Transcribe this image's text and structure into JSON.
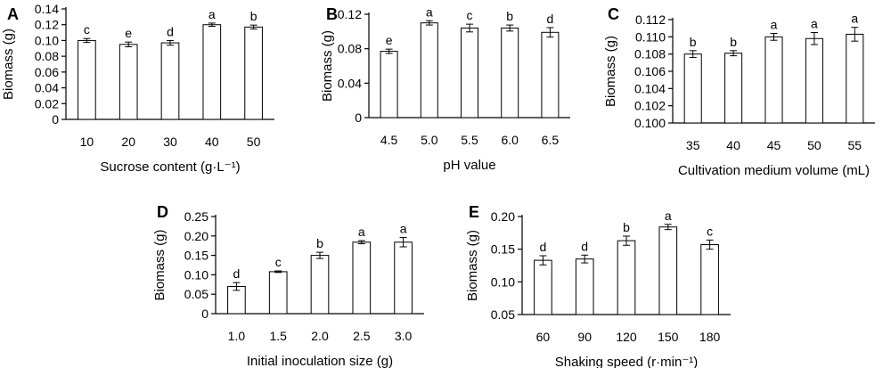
{
  "chart_data": [
    {
      "panel": "A",
      "type": "bar",
      "categories": [
        "10",
        "20",
        "30",
        "40",
        "50"
      ],
      "values": [
        0.1,
        0.095,
        0.097,
        0.12,
        0.117
      ],
      "errors": [
        0.0025,
        0.003,
        0.003,
        0.002,
        0.0025
      ],
      "significance": [
        "c",
        "e",
        "d",
        "a",
        "b"
      ],
      "xlabel": "Sucrose content (g·L⁻¹)",
      "ylabel": "Biomass (g)",
      "ylim": [
        0,
        0.14
      ],
      "yticks": [
        "0",
        "0.02",
        "0.04",
        "0.06",
        "0.08",
        "0.10",
        "0.12",
        "0.14"
      ],
      "grid": false
    },
    {
      "panel": "B",
      "type": "bar",
      "categories": [
        "4.5",
        "5.0",
        "5.5",
        "6.0",
        "6.5"
      ],
      "values": [
        0.077,
        0.11,
        0.104,
        0.104,
        0.099
      ],
      "errors": [
        0.0025,
        0.0025,
        0.0045,
        0.0035,
        0.0055
      ],
      "significance": [
        "e",
        "a",
        "c",
        "b",
        "d"
      ],
      "xlabel": "pH value",
      "ylabel": "Biomass (g)",
      "ylim": [
        0,
        0.12
      ],
      "yticks": [
        "0",
        "0.04",
        "0.08",
        "0.12"
      ],
      "grid": false
    },
    {
      "panel": "C",
      "type": "bar",
      "categories": [
        "35",
        "40",
        "45",
        "50",
        "55"
      ],
      "values": [
        0.108,
        0.1081,
        0.11,
        0.1098,
        0.1103
      ],
      "errors": [
        0.0004,
        0.0003,
        0.0004,
        0.0007,
        0.0008
      ],
      "significance": [
        "b",
        "b",
        "a",
        "a",
        "a"
      ],
      "xlabel": "Cultivation medium volume (mL)",
      "ylabel": "Biomass (g)",
      "ylim": [
        0.1,
        0.112
      ],
      "yticks": [
        "0.100",
        "0.102",
        "0.104",
        "0.106",
        "0.108",
        "0.110",
        "0.112"
      ],
      "grid": false
    },
    {
      "panel": "D",
      "type": "bar",
      "categories": [
        "1.0",
        "1.5",
        "2.0",
        "2.5",
        "3.0"
      ],
      "values": [
        0.07,
        0.108,
        0.15,
        0.184,
        0.184
      ],
      "errors": [
        0.01,
        0.002,
        0.008,
        0.004,
        0.012
      ],
      "significance": [
        "d",
        "c",
        "b",
        "a",
        "a"
      ],
      "xlabel": "Initial inoculation size (g)",
      "ylabel": "Biomass (g)",
      "ylim": [
        0,
        0.25
      ],
      "yticks": [
        "0",
        "0.05",
        "0.10",
        "0.15",
        "0.20",
        "0.25"
      ],
      "grid": false
    },
    {
      "panel": "E",
      "type": "bar",
      "categories": [
        "60",
        "90",
        "120",
        "150",
        "180"
      ],
      "values": [
        0.133,
        0.135,
        0.163,
        0.184,
        0.157
      ],
      "errors": [
        0.007,
        0.006,
        0.007,
        0.004,
        0.007
      ],
      "significance": [
        "d",
        "d",
        "b",
        "a",
        "c"
      ],
      "xlabel": "Shaking speed (r·min⁻¹)",
      "ylabel": "Biomass (g)",
      "ylim": [
        0.05,
        0.2
      ],
      "yticks": [
        "0.05",
        "0.10",
        "0.15",
        "0.20"
      ],
      "grid": false
    }
  ]
}
